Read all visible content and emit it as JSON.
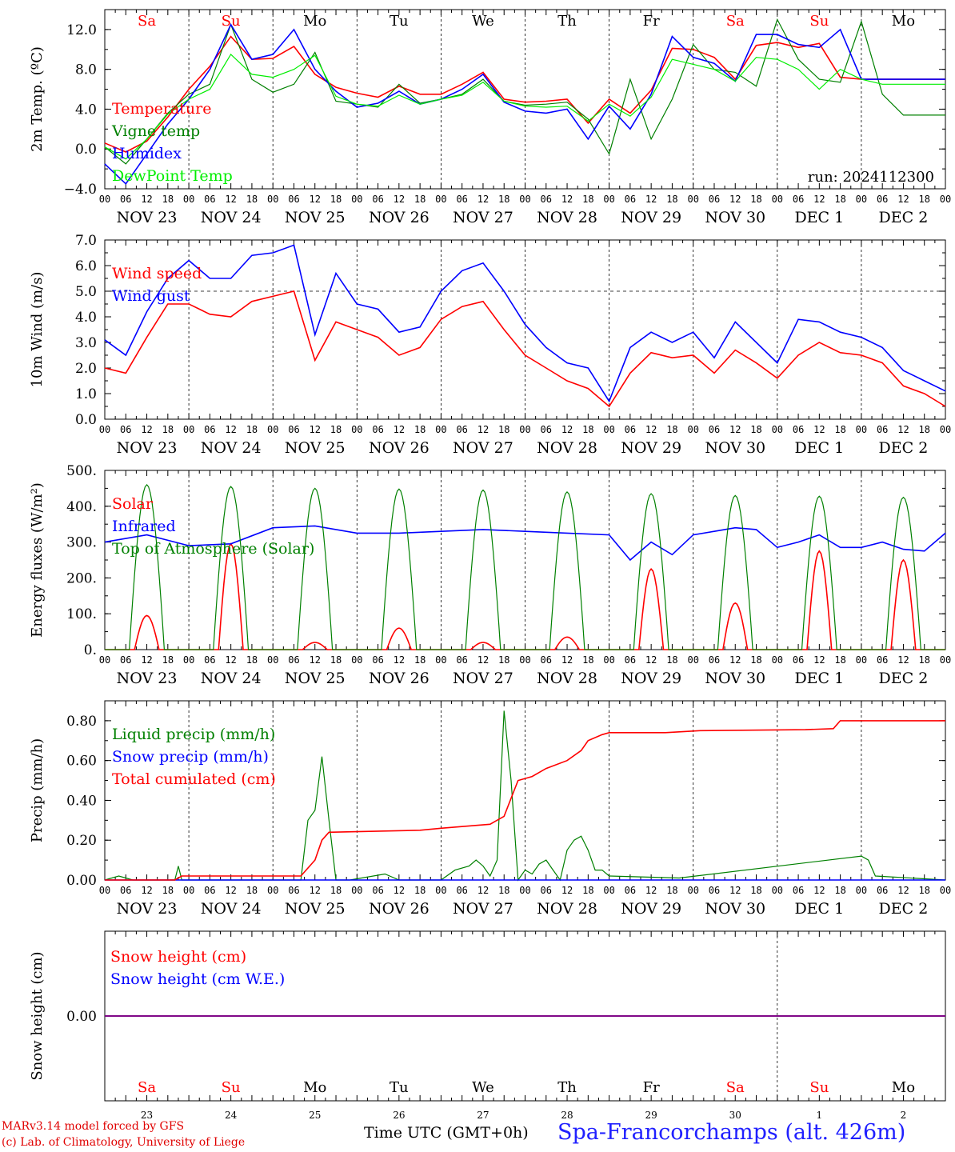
{
  "panels": [
    {
      "id": "temp",
      "ylabel": "2m Temp. (ºC)",
      "ticks": [
        "−4.0",
        "0.0",
        "4.0",
        "8.0",
        "12.0"
      ],
      "tickvals": [
        -4,
        0,
        4,
        8,
        12
      ],
      "ylim": [
        -4,
        14
      ],
      "dash": [],
      "legend": [
        {
          "text": "Temperature",
          "color": "#ff0000"
        },
        {
          "text": "Vigne temp",
          "color": "#008000"
        },
        {
          "text": "Humidex",
          "color": "#0000ff"
        },
        {
          "text": "DewPoint Temp",
          "color": "#00ee00"
        }
      ],
      "run": "run: 2024112300"
    },
    {
      "id": "wind",
      "ylabel": "10m Wind (m/s)",
      "ticks": [
        "0.0",
        "1.0",
        "2.0",
        "3.0",
        "4.0",
        "5.0",
        "6.0",
        "7.0"
      ],
      "tickvals": [
        0,
        1,
        2,
        3,
        4,
        5,
        6,
        7
      ],
      "ylim": [
        0,
        7
      ],
      "dash": [
        5
      ],
      "legend": [
        {
          "text": "Wind speed",
          "color": "#ff0000"
        },
        {
          "text": "Wind gust",
          "color": "#0000ff"
        }
      ]
    },
    {
      "id": "energy",
      "ylabel": "Energy fluxes (W/m²)",
      "ticks": [
        "0.",
        "100.",
        "200.",
        "300.",
        "400.",
        "500."
      ],
      "tickvals": [
        0,
        100,
        200,
        300,
        400,
        500
      ],
      "ylim": [
        0,
        500
      ],
      "dash": [],
      "legend": [
        {
          "text": "Solar",
          "color": "#ff0000"
        },
        {
          "text": "Infrared",
          "color": "#0000ff"
        },
        {
          "text": "Top of Atmosphere (Solar)",
          "color": "#008000"
        }
      ]
    },
    {
      "id": "precip",
      "ylabel": "Precip (mm/h)",
      "ticks": [
        "0.00",
        "0.20",
        "0.40",
        "0.60",
        "0.80"
      ],
      "tickvals": [
        0,
        0.2,
        0.4,
        0.6,
        0.8
      ],
      "ylim": [
        0,
        0.9
      ],
      "dash": [],
      "legend": [
        {
          "text": "Liquid precip (mm/h)",
          "color": "#008000"
        },
        {
          "text": "Snow precip (mm/h)",
          "color": "#0000ff"
        },
        {
          "text": "Total cumulated (cm)",
          "color": "#ff0000"
        }
      ]
    },
    {
      "id": "snow",
      "ylabel": "Snow height (cm)",
      "ticks": [
        "0.00"
      ],
      "tickvals": [
        0
      ],
      "ylim": [
        -1,
        1
      ],
      "dash": [],
      "legend": [
        {
          "text": "Snow height (cm)",
          "color": "#ff0000"
        },
        {
          "text": "Snow height (cm W.E.)",
          "color": "#0000ff"
        }
      ]
    }
  ],
  "hour_labels": [
    "00",
    "06",
    "12",
    "18"
  ],
  "date_labels": [
    "NOV 23",
    "NOV 24",
    "NOV 25",
    "NOV 26",
    "NOV 27",
    "NOV 28",
    "NOV 29",
    "NOV 30",
    "DEC  1",
    "DEC  2"
  ],
  "days": [
    {
      "name": "Sa",
      "color": "#ff0000"
    },
    {
      "name": "Su",
      "color": "#ff0000"
    },
    {
      "name": "Mo",
      "color": "#000000"
    },
    {
      "name": "Tu",
      "color": "#000000"
    },
    {
      "name": "We",
      "color": "#000000"
    },
    {
      "name": "Th",
      "color": "#000000"
    },
    {
      "name": "Fr",
      "color": "#000000"
    },
    {
      "name": "Sa",
      "color": "#ff0000"
    },
    {
      "name": "Su",
      "color": "#ff0000"
    },
    {
      "name": "Mo",
      "color": "#000000"
    }
  ],
  "day_numbers": [
    "23",
    "24",
    "25",
    "26",
    "27",
    "28",
    "29",
    "30",
    "1",
    "2"
  ],
  "footer": {
    "model": "MARv3.14 model forced by GFS",
    "lab": "(c) Lab. of Climatology, University of Liege",
    "time_label": "Time UTC (GMT+0h)",
    "station": "Spa-Francorchamps (alt. 426m)"
  },
  "chart_data": [
    {
      "type": "line",
      "title": "",
      "ylabel": "2m Temp. (ºC)",
      "x_unit": "hours from 2024-11-23 00 UTC",
      "ylim": [
        -4,
        14
      ],
      "series": [
        {
          "name": "Temperature",
          "color": "#ff0000",
          "x": [
            0,
            6,
            12,
            18,
            24,
            30,
            36,
            42,
            48,
            54,
            60,
            66,
            72,
            78,
            84,
            90,
            96,
            102,
            108,
            114,
            120,
            126,
            132,
            138,
            144,
            150,
            156,
            162,
            168,
            174,
            180,
            186,
            192,
            198,
            204,
            210,
            216,
            222,
            228,
            234,
            240
          ],
          "y": [
            0.6,
            -0.3,
            0.8,
            3.2,
            6.0,
            8.3,
            11.3,
            9.0,
            9.1,
            10.3,
            7.5,
            6.2,
            5.6,
            5.2,
            6.3,
            5.5,
            5.5,
            6.5,
            7.7,
            5.0,
            4.7,
            4.8,
            5.0,
            2.6,
            5.0,
            3.6,
            5.9,
            10.1,
            10.0,
            9.2,
            7.0,
            10.4,
            10.7,
            10.2,
            10.6,
            7.2,
            7.0,
            7.0,
            7.0,
            7.0,
            7.0
          ]
        },
        {
          "name": "Vigne temp",
          "color": "#008000",
          "x": [
            0,
            6,
            12,
            18,
            24,
            30,
            36,
            42,
            48,
            54,
            60,
            66,
            72,
            78,
            84,
            90,
            96,
            102,
            108,
            114,
            120,
            126,
            132,
            138,
            144,
            150,
            156,
            162,
            168,
            174,
            180,
            186,
            192,
            198,
            204,
            210,
            216,
            222,
            228,
            234,
            240
          ],
          "y": [
            0.2,
            -1.5,
            1.0,
            3.6,
            5.5,
            6.5,
            12.5,
            7.0,
            5.7,
            6.5,
            9.7,
            4.8,
            4.5,
            4.2,
            6.5,
            4.6,
            5.0,
            5.5,
            7.0,
            4.8,
            4.4,
            4.5,
            4.7,
            3.0,
            -0.5,
            7.0,
            1.0,
            5.0,
            10.5,
            8.0,
            7.7,
            6.3,
            13.0,
            9.0,
            7.0,
            6.7,
            12.8,
            5.5,
            3.4,
            3.4,
            3.4
          ]
        },
        {
          "name": "Humidex",
          "color": "#0000ff",
          "x": [
            0,
            6,
            12,
            18,
            24,
            30,
            36,
            42,
            48,
            54,
            60,
            66,
            72,
            78,
            84,
            90,
            96,
            102,
            108,
            114,
            120,
            126,
            132,
            138,
            144,
            150,
            156,
            162,
            168,
            174,
            180,
            186,
            192,
            198,
            204,
            210,
            216,
            222,
            228,
            234,
            240
          ],
          "y": [
            -1.5,
            -3.5,
            -0.5,
            2.5,
            5.0,
            8.0,
            12.5,
            9.0,
            9.5,
            12.0,
            8.0,
            5.8,
            4.2,
            4.6,
            5.8,
            4.5,
            5.0,
            6.0,
            7.5,
            4.7,
            3.8,
            3.6,
            4.0,
            1.0,
            4.3,
            2.0,
            5.5,
            11.3,
            9.2,
            8.6,
            6.8,
            11.5,
            11.5,
            10.5,
            10.2,
            12.0,
            7.0,
            7.0,
            7.0,
            7.0,
            7.0
          ]
        },
        {
          "name": "DewPoint Temp",
          "color": "#00ee00",
          "x": [
            0,
            6,
            12,
            18,
            24,
            30,
            36,
            42,
            48,
            54,
            60,
            66,
            72,
            78,
            84,
            90,
            96,
            102,
            108,
            114,
            120,
            126,
            132,
            138,
            144,
            150,
            156,
            162,
            168,
            174,
            180,
            186,
            192,
            198,
            204,
            210,
            216,
            222,
            228,
            234,
            240
          ],
          "y": [
            0.2,
            -1.0,
            1.0,
            3.5,
            5.0,
            6.0,
            9.5,
            7.5,
            7.2,
            8.0,
            9.4,
            5.3,
            4.5,
            4.3,
            5.4,
            4.5,
            5.0,
            5.4,
            6.7,
            4.8,
            4.3,
            4.2,
            4.3,
            2.8,
            4.5,
            3.3,
            5.2,
            9.0,
            8.5,
            8.0,
            6.8,
            9.2,
            9.0,
            8.0,
            6.0,
            8.0,
            7.0,
            6.5,
            6.5,
            6.5,
            6.5
          ]
        }
      ]
    },
    {
      "type": "line",
      "title": "",
      "ylabel": "10m Wind (m/s)",
      "ylim": [
        0,
        7
      ],
      "series": [
        {
          "name": "Wind speed",
          "color": "#ff0000",
          "x": [
            0,
            6,
            12,
            18,
            24,
            30,
            36,
            42,
            48,
            54,
            60,
            66,
            72,
            78,
            84,
            90,
            96,
            102,
            108,
            114,
            120,
            126,
            132,
            138,
            144,
            150,
            156,
            162,
            168,
            174,
            180,
            186,
            192,
            198,
            204,
            210,
            216,
            222,
            228,
            234,
            240
          ],
          "y": [
            2.0,
            1.8,
            3.2,
            4.5,
            4.5,
            4.1,
            4.0,
            4.6,
            4.8,
            5.0,
            2.3,
            3.8,
            3.5,
            3.2,
            2.5,
            2.8,
            3.9,
            4.4,
            4.6,
            3.5,
            2.5,
            2.0,
            1.5,
            1.2,
            0.5,
            1.8,
            2.6,
            2.4,
            2.5,
            1.8,
            2.7,
            2.2,
            1.6,
            2.5,
            3.0,
            2.6,
            2.5,
            2.2,
            1.3,
            1.0,
            0.5
          ]
        },
        {
          "name": "Wind gust",
          "color": "#0000ff",
          "x": [
            0,
            6,
            12,
            18,
            24,
            30,
            36,
            42,
            48,
            54,
            60,
            66,
            72,
            78,
            84,
            90,
            96,
            102,
            108,
            114,
            120,
            126,
            132,
            138,
            144,
            150,
            156,
            162,
            168,
            174,
            180,
            186,
            192,
            198,
            204,
            210,
            216,
            222,
            228,
            234,
            240
          ],
          "y": [
            3.1,
            2.5,
            4.2,
            5.5,
            6.2,
            5.5,
            5.5,
            6.4,
            6.5,
            6.8,
            3.3,
            5.7,
            4.5,
            4.3,
            3.4,
            3.6,
            5.0,
            5.8,
            6.1,
            5.0,
            3.7,
            2.8,
            2.2,
            2.0,
            0.7,
            2.8,
            3.4,
            3.0,
            3.4,
            2.4,
            3.8,
            3.0,
            2.2,
            3.9,
            3.8,
            3.4,
            3.2,
            2.8,
            1.9,
            1.5,
            1.1
          ]
        }
      ]
    },
    {
      "type": "line",
      "title": "",
      "ylabel": "Energy fluxes (W/m²)",
      "ylim": [
        0,
        500
      ],
      "series": [
        {
          "name": "Solar",
          "color": "#ff0000",
          "peaks": [
            95,
            295,
            20,
            60,
            20,
            35,
            225,
            130,
            275,
            250
          ]
        },
        {
          "name": "Infrared",
          "color": "#0000ff",
          "x": [
            0,
            12,
            24,
            36,
            48,
            60,
            72,
            84,
            96,
            108,
            120,
            132,
            144,
            150,
            156,
            162,
            168,
            174,
            180,
            186,
            192,
            198,
            204,
            210,
            216,
            222,
            228,
            234,
            240
          ],
          "y": [
            300,
            320,
            290,
            295,
            340,
            345,
            325,
            325,
            330,
            335,
            330,
            325,
            320,
            250,
            300,
            265,
            320,
            330,
            340,
            335,
            285,
            300,
            320,
            285,
            285,
            300,
            280,
            275,
            325
          ]
        },
        {
          "name": "Top of Atmosphere (Solar)",
          "color": "#008000",
          "peaks": [
            460,
            455,
            450,
            448,
            445,
            440,
            435,
            430,
            428,
            425
          ]
        }
      ]
    },
    {
      "type": "line",
      "title": "",
      "ylabel": "Precip (mm/h)",
      "ylim": [
        0,
        0.9
      ],
      "series": [
        {
          "name": "Liquid precip (mm/h)",
          "color": "#008000",
          "x": [
            0,
            4,
            8,
            20,
            21,
            22,
            24,
            40,
            56,
            58,
            60,
            62,
            64,
            66,
            70,
            80,
            84,
            96,
            100,
            104,
            106,
            108,
            110,
            112,
            114,
            116,
            118,
            120,
            122,
            124,
            126,
            128,
            130,
            132,
            134,
            136,
            138,
            140,
            142,
            144,
            164,
            216,
            218,
            220,
            240
          ],
          "y": [
            0,
            0.02,
            0,
            0,
            0.07,
            0,
            0,
            0,
            0,
            0.3,
            0.35,
            0.62,
            0.3,
            0,
            0,
            0.03,
            0,
            0,
            0.05,
            0.07,
            0.1,
            0.07,
            0.02,
            0.1,
            0.85,
            0.5,
            0,
            0.05,
            0.03,
            0.08,
            0.1,
            0.05,
            0,
            0.15,
            0.2,
            0.22,
            0.15,
            0.05,
            0.05,
            0.02,
            0.01,
            0.12,
            0.1,
            0.02,
            0
          ]
        },
        {
          "name": "Snow precip (mm/h)",
          "color": "#0000ff",
          "x": [
            0,
            240
          ],
          "y": [
            0,
            0
          ]
        },
        {
          "name": "Total cumulated (cm)",
          "color": "#ff0000",
          "x": [
            0,
            20,
            22,
            56,
            60,
            62,
            64,
            90,
            96,
            110,
            112,
            114,
            118,
            122,
            126,
            132,
            136,
            138,
            142,
            144,
            160,
            170,
            200,
            208,
            210,
            212,
            240
          ],
          "y": [
            0,
            0,
            0.02,
            0.02,
            0.1,
            0.2,
            0.24,
            0.25,
            0.26,
            0.28,
            0.3,
            0.32,
            0.5,
            0.52,
            0.56,
            0.6,
            0.65,
            0.7,
            0.73,
            0.74,
            0.74,
            0.75,
            0.755,
            0.76,
            0.8,
            0.8,
            0.8
          ]
        }
      ]
    },
    {
      "type": "line",
      "title": "",
      "ylabel": "Snow height (cm)",
      "ylim": [
        -1,
        1
      ],
      "series": [
        {
          "name": "Snow height (cm)",
          "color": "#ff0000",
          "x": [
            0,
            240
          ],
          "y": [
            0,
            0
          ]
        },
        {
          "name": "Snow height (cm W.E.)",
          "color": "#0000ff",
          "x": [
            0,
            240
          ],
          "y": [
            0,
            0
          ]
        }
      ]
    }
  ]
}
